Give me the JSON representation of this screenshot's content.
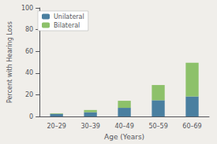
{
  "chart_data": {
    "type": "bar",
    "stacked": true,
    "categories": [
      "20–29",
      "30–39",
      "40–49",
      "50–59",
      "60–69"
    ],
    "series": [
      {
        "name": "Unilateral",
        "color": "#4a7fa0",
        "values": [
          2.5,
          4.0,
          8.0,
          15.0,
          18.5
        ]
      },
      {
        "name": "Bilateral",
        "color": "#8dc16a",
        "values": [
          0.5,
          2.0,
          6.5,
          14.0,
          31.0
        ]
      }
    ],
    "xlabel": "Age (Years)",
    "ylabel": "Percent with Hearing Loss",
    "ylim": [
      0,
      100
    ],
    "yticks": [
      0,
      20,
      40,
      60,
      80,
      100
    ],
    "grid": false,
    "legend": "upper left"
  }
}
